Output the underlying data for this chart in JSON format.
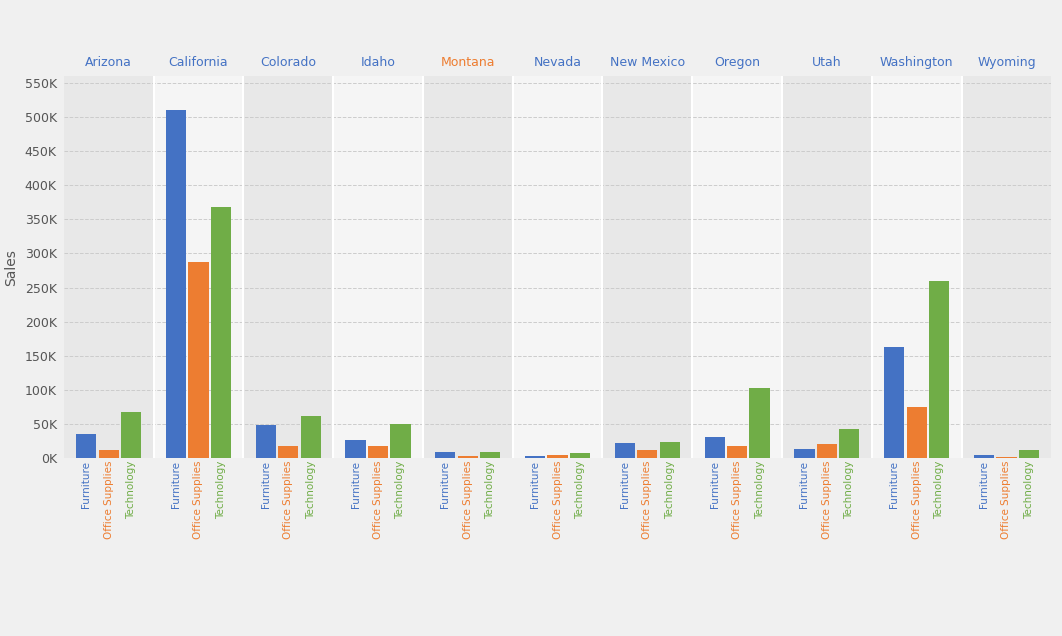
{
  "states": [
    "Arizona",
    "California",
    "Colorado",
    "Idaho",
    "Montana",
    "Nevada",
    "New Mexico",
    "Oregon",
    "Utah",
    "Washington",
    "Wyoming"
  ],
  "categories": [
    "Furniture",
    "Office Supplies",
    "Technology"
  ],
  "colors": [
    "#4472C4",
    "#ED7D31",
    "#70AD47"
  ],
  "values": {
    "Arizona": [
      35000,
      12000,
      68000
    ],
    "California": [
      510000,
      287000,
      368000
    ],
    "Colorado": [
      48000,
      18000,
      62000
    ],
    "Idaho": [
      26000,
      17000,
      50000
    ],
    "Montana": [
      8000,
      3000,
      9000
    ],
    "Nevada": [
      3000,
      5000,
      7000
    ],
    "New Mexico": [
      22000,
      12000,
      24000
    ],
    "Oregon": [
      30000,
      17000,
      103000
    ],
    "Utah": [
      13000,
      20000,
      42000
    ],
    "Washington": [
      163000,
      74000,
      260000
    ],
    "Wyoming": [
      5000,
      2000,
      11000
    ]
  },
  "ylabel": "Sales",
  "yticks": [
    0,
    50000,
    100000,
    150000,
    200000,
    250000,
    300000,
    350000,
    400000,
    450000,
    500000,
    550000
  ],
  "ytick_labels": [
    "0K",
    "50K",
    "100K",
    "150K",
    "200K",
    "250K",
    "300K",
    "350K",
    "400K",
    "450K",
    "500K",
    "550K"
  ],
  "bg_color_odd": "#e8e8e8",
  "bg_color_even": "#f5f5f5",
  "grid_color": "#ffffff",
  "state_label_colors": {
    "Arizona": "#4472C4",
    "California": "#4472C4",
    "Colorado": "#4472C4",
    "Idaho": "#4472C4",
    "Montana": "#ED7D31",
    "Nevada": "#4472C4",
    "New Mexico": "#4472C4",
    "Oregon": "#4472C4",
    "Utah": "#4472C4",
    "Washington": "#4472C4",
    "Wyoming": "#4472C4"
  },
  "cat_label_colors": {
    "Furniture": "#4472C4",
    "Office Supplies": "#ED7D31",
    "Technology": "#70AD47"
  }
}
